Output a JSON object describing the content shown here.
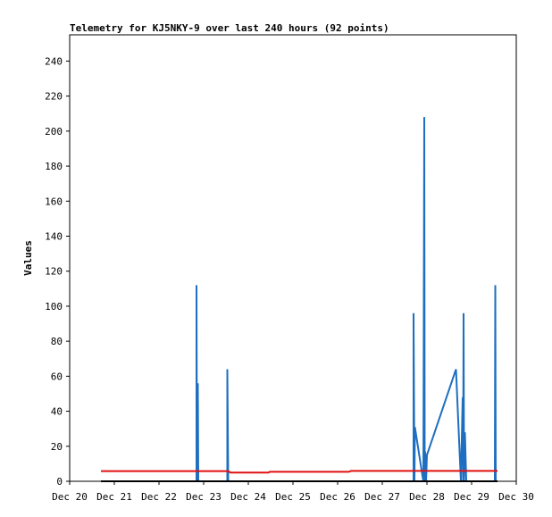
{
  "chart_data": {
    "type": "line",
    "title": "Telemetry for KJ5NKY-9 over last 240 hours (92 points)",
    "xlabel": "",
    "ylabel": "Values",
    "ylim": [
      0,
      255
    ],
    "y_ticks": [
      0,
      20,
      40,
      60,
      80,
      100,
      120,
      140,
      160,
      180,
      200,
      220,
      240
    ],
    "x_range_days": [
      20,
      30
    ],
    "x_ticks": [
      {
        "day": 20,
        "label": "Dec 20"
      },
      {
        "day": 21,
        "label": "Dec 21"
      },
      {
        "day": 22,
        "label": "Dec 22"
      },
      {
        "day": 23,
        "label": "Dec 23"
      },
      {
        "day": 24,
        "label": "Dec 24"
      },
      {
        "day": 25,
        "label": "Dec 25"
      },
      {
        "day": 26,
        "label": "Dec 26"
      },
      {
        "day": 27,
        "label": "Dec 27"
      },
      {
        "day": 28,
        "label": "Dec 28"
      },
      {
        "day": 29,
        "label": "Dec 29"
      },
      {
        "day": 30,
        "label": "Dec 30"
      }
    ],
    "grid": false,
    "legend": "none",
    "series": [
      {
        "color": "#1e6fc0",
        "points": [
          [
            20.7,
            0
          ],
          [
            22.84,
            0
          ],
          [
            22.84,
            112
          ],
          [
            22.85,
            0
          ],
          [
            22.87,
            56
          ],
          [
            22.88,
            0
          ],
          [
            23.53,
            0
          ],
          [
            23.53,
            64
          ],
          [
            23.55,
            0
          ],
          [
            27.7,
            0
          ],
          [
            27.7,
            96
          ],
          [
            27.72,
            0
          ],
          [
            27.73,
            31
          ],
          [
            27.9,
            3
          ],
          [
            27.92,
            0
          ],
          [
            27.94,
            208
          ],
          [
            27.95,
            0
          ],
          [
            27.96,
            17
          ],
          [
            27.98,
            0
          ],
          [
            28.0,
            15
          ],
          [
            28.65,
            64
          ],
          [
            28.76,
            0
          ],
          [
            28.8,
            48
          ],
          [
            28.81,
            0
          ],
          [
            28.82,
            96
          ],
          [
            28.83,
            0
          ],
          [
            28.85,
            28
          ],
          [
            28.88,
            0
          ],
          [
            29.52,
            0
          ],
          [
            29.53,
            112
          ],
          [
            29.54,
            0
          ],
          [
            29.58,
            0
          ]
        ]
      },
      {
        "color": "#000000",
        "points": [
          [
            20.7,
            0
          ],
          [
            29.58,
            0
          ]
        ]
      },
      {
        "color": "#e01010",
        "points": [
          [
            20.7,
            5.8
          ],
          [
            22.84,
            5.8
          ],
          [
            23.55,
            5.8
          ],
          [
            23.6,
            5.0
          ],
          [
            24.45,
            5.0
          ],
          [
            24.48,
            5.4
          ],
          [
            26.25,
            5.4
          ],
          [
            26.3,
            5.9
          ],
          [
            29.58,
            5.9
          ]
        ]
      }
    ]
  }
}
